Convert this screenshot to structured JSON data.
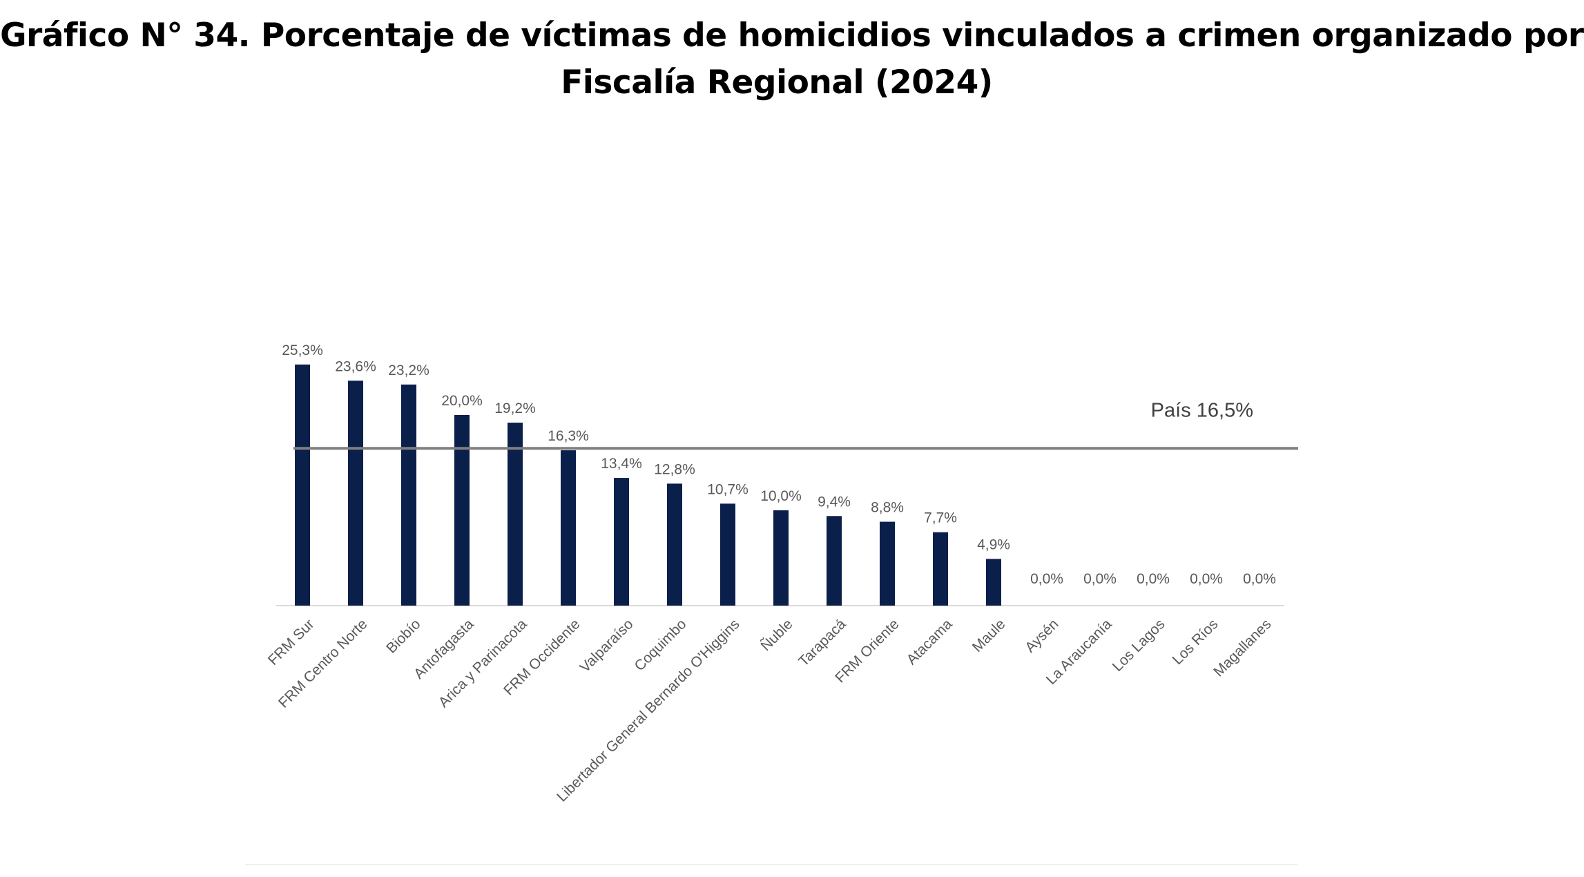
{
  "title": {
    "line1": "Gráfico N° 34. Porcentaje de víctimas de homicidios vinculados a crimen organizado por",
    "line2": "Fiscalía Regional (2024)"
  },
  "colors": {
    "bar": "#0b1f4b",
    "reference_line": "#7f7f7f",
    "axis": "#d9d9d9",
    "labels": "#595959"
  },
  "chart_data": {
    "type": "bar",
    "categories": [
      "FRM Sur",
      "FRM Centro Norte",
      "Biobío",
      "Antofagasta",
      "Arica y Parinacota",
      "FRM Occidente",
      "Valparaíso",
      "Coquimbo",
      "Libertador General Bernardo O'Higgins",
      "Ñuble",
      "Tarapacá",
      "FRM Oriente",
      "Atacama",
      "Maule",
      "Aysén",
      "La Araucanía",
      "Los Lagos",
      "Los Ríos",
      "Magallanes"
    ],
    "values": [
      25.3,
      23.6,
      23.2,
      20.0,
      19.2,
      16.3,
      13.4,
      12.8,
      10.7,
      10.0,
      9.4,
      8.8,
      7.7,
      4.9,
      0.0,
      0.0,
      0.0,
      0.0,
      0.0
    ],
    "data_labels": [
      "25,3%",
      "23,6%",
      "23,2%",
      "20,0%",
      "19,2%",
      "16,3%",
      "13,4%",
      "12,8%",
      "10,7%",
      "10,0%",
      "9,4%",
      "8,8%",
      "7,7%",
      "4,9%",
      "0,0%",
      "0,0%",
      "0,0%",
      "0,0%",
      "0,0%"
    ],
    "reference_line": {
      "value": 16.5,
      "label": "País 16,5%"
    },
    "ylim": [
      0,
      26
    ],
    "grid": false,
    "legend": "none"
  }
}
